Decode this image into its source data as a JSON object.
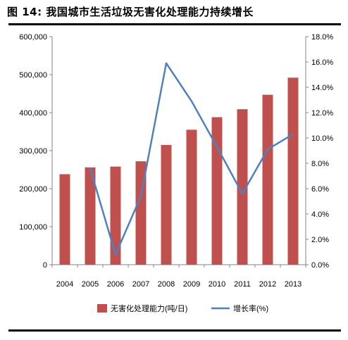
{
  "figure_title": "图 14:  我国城市生活垃圾无害化处理能力持续增长",
  "chart_data": {
    "type": "bar",
    "categories": [
      "2004",
      "2005",
      "2006",
      "2007",
      "2008",
      "2009",
      "2010",
      "2011",
      "2012",
      "2013"
    ],
    "series": [
      {
        "name": "无害化处理能力(吨/日)",
        "type": "bar",
        "axis": "left",
        "color": "#c0504d",
        "values": [
          238000,
          256000,
          258000,
          272000,
          315000,
          355000,
          388000,
          409000,
          447000,
          492000
        ]
      },
      {
        "name": "增长率(%)",
        "type": "line",
        "axis": "right",
        "color": "#4f81bd",
        "values": [
          null,
          7.6,
          0.8,
          5.4,
          15.9,
          12.9,
          9.3,
          5.6,
          9.1,
          10.3
        ]
      }
    ],
    "y_left": {
      "ylim": [
        0,
        600000
      ],
      "ticks": [
        0,
        100000,
        200000,
        300000,
        400000,
        500000,
        600000
      ],
      "tick_labels": [
        "0",
        "100,000",
        "200,000",
        "300,000",
        "400,000",
        "500,000",
        "600,000"
      ]
    },
    "y_right": {
      "ylim": [
        0,
        18
      ],
      "ticks": [
        0,
        2,
        4,
        6,
        8,
        10,
        12,
        14,
        16,
        18
      ],
      "tick_labels": [
        "0.0%",
        "2.0%",
        "4.0%",
        "6.0%",
        "8.0%",
        "10.0%",
        "12.0%",
        "14.0%",
        "16.0%",
        "18.0%"
      ]
    },
    "legend_position": "bottom",
    "grid": false
  }
}
